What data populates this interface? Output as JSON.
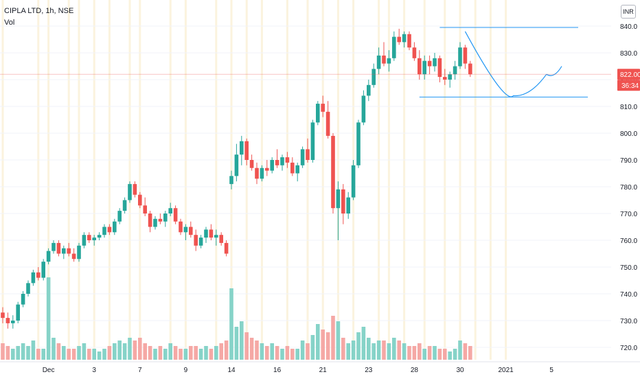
{
  "legend": {
    "title": "CIPLA LTD, 1h, NSE",
    "volume_label": "Vol"
  },
  "currency": "INR",
  "price_labels": {
    "last_price": "822.00",
    "countdown": "36:34"
  },
  "colors": {
    "up": "#26a69a",
    "down": "#ef5350",
    "volume_up": "#86d3c8",
    "volume_down": "#f5a8a5",
    "session_stripe": "#fbf3de",
    "drawing": "#2196f3",
    "last_price_line": "#ef5350",
    "axis_text": "#131722"
  },
  "chart_data": {
    "type": "candlestick",
    "title": "CIPLA LTD, 1h, NSE",
    "ylim": [
      714,
      844
    ],
    "y_ticks": [
      720,
      730,
      740,
      750,
      760,
      770,
      780,
      790,
      800,
      810,
      820,
      830,
      840
    ],
    "x_ticks": [
      {
        "label": "Dec",
        "index": 9
      },
      {
        "label": "3",
        "index": 18
      },
      {
        "label": "7",
        "index": 27
      },
      {
        "label": "9",
        "index": 36
      },
      {
        "label": "14",
        "index": 45
      },
      {
        "label": "16",
        "index": 54
      },
      {
        "label": "21",
        "index": 63
      },
      {
        "label": "23",
        "index": 72
      },
      {
        "label": "28",
        "index": 81
      },
      {
        "label": "30",
        "index": 90
      },
      {
        "label": "2021",
        "index": 99
      },
      {
        "label": "5",
        "index": 108
      }
    ],
    "session_days": [
      0,
      7,
      9,
      13,
      15,
      18,
      21,
      25,
      27,
      33,
      36,
      42,
      45,
      48,
      51,
      56,
      60,
      63,
      66,
      69,
      74,
      76,
      79,
      83,
      87,
      90,
      93,
      96,
      99
    ],
    "last_price": 822.0,
    "volume_max": 35,
    "series": [
      {
        "name": "CIPLA LTD",
        "candles": [
          [
            733,
            735,
            729,
            731,
            6
          ],
          [
            731,
            733,
            727,
            729,
            5
          ],
          [
            729,
            732,
            727,
            730,
            4
          ],
          [
            730,
            737,
            729,
            736,
            5
          ],
          [
            736,
            741,
            735,
            740,
            6
          ],
          [
            740,
            745,
            739,
            744,
            5
          ],
          [
            744,
            749,
            743,
            748,
            7
          ],
          [
            748,
            750,
            745,
            746,
            4
          ],
          [
            746,
            753,
            745,
            752,
            4
          ],
          [
            752,
            757,
            751,
            756,
            30
          ],
          [
            756,
            760,
            755,
            759,
            8
          ],
          [
            759,
            760,
            754,
            755,
            6
          ],
          [
            755,
            758,
            753,
            757,
            5
          ],
          [
            757,
            759,
            754,
            755,
            4
          ],
          [
            755,
            757,
            752,
            753,
            4
          ],
          [
            753,
            759,
            752,
            758,
            5
          ],
          [
            758,
            763,
            757,
            762,
            6
          ],
          [
            762,
            763,
            759,
            760,
            4
          ],
          [
            760,
            762,
            758,
            761,
            4
          ],
          [
            761,
            763,
            760,
            762,
            3
          ],
          [
            762,
            766,
            761,
            765,
            4
          ],
          [
            765,
            766,
            762,
            763,
            5
          ],
          [
            763,
            768,
            762,
            767,
            6
          ],
          [
            767,
            772,
            766,
            771,
            7
          ],
          [
            771,
            776,
            770,
            775,
            6
          ],
          [
            775,
            782,
            774,
            781,
            8
          ],
          [
            781,
            782,
            776,
            777,
            7
          ],
          [
            777,
            778,
            772,
            773,
            8
          ],
          [
            773,
            776,
            769,
            770,
            6
          ],
          [
            770,
            771,
            763,
            765,
            5
          ],
          [
            765,
            769,
            764,
            768,
            4
          ],
          [
            768,
            770,
            766,
            767,
            5
          ],
          [
            767,
            771,
            765,
            770,
            4
          ],
          [
            770,
            774,
            769,
            772,
            6
          ],
          [
            772,
            773,
            766,
            767,
            5
          ],
          [
            767,
            768,
            762,
            763,
            4
          ],
          [
            763,
            766,
            760,
            765,
            4
          ],
          [
            765,
            767,
            761,
            762,
            5
          ],
          [
            762,
            764,
            756,
            758,
            5
          ],
          [
            758,
            762,
            757,
            761,
            4
          ],
          [
            761,
            765,
            759,
            764,
            5
          ],
          [
            764,
            766,
            760,
            761,
            4
          ],
          [
            761,
            764,
            758,
            762,
            5
          ],
          [
            762,
            763,
            758,
            759,
            6
          ],
          [
            759,
            760,
            754,
            755,
            7
          ],
          [
            781,
            786,
            779,
            784,
            26
          ],
          [
            784,
            796,
            782,
            792,
            12
          ],
          [
            792,
            799,
            788,
            797,
            14
          ],
          [
            797,
            798,
            788,
            790,
            10
          ],
          [
            790,
            792,
            786,
            787,
            8
          ],
          [
            787,
            789,
            781,
            783,
            7
          ],
          [
            783,
            788,
            782,
            787,
            6
          ],
          [
            787,
            790,
            784,
            786,
            5
          ],
          [
            786,
            791,
            785,
            790,
            6
          ],
          [
            790,
            794,
            787,
            788,
            5
          ],
          [
            788,
            792,
            786,
            791,
            4
          ],
          [
            791,
            793,
            787,
            789,
            5
          ],
          [
            789,
            791,
            784,
            785,
            4
          ],
          [
            785,
            789,
            782,
            788,
            4
          ],
          [
            788,
            795,
            787,
            794,
            7
          ],
          [
            794,
            798,
            789,
            790,
            6
          ],
          [
            790,
            805,
            789,
            804,
            9
          ],
          [
            804,
            812,
            803,
            811,
            13
          ],
          [
            811,
            814,
            806,
            808,
            11
          ],
          [
            808,
            812,
            798,
            799,
            10
          ],
          [
            799,
            800,
            770,
            772,
            16
          ],
          [
            772,
            782,
            760,
            779,
            14
          ],
          [
            779,
            781,
            766,
            770,
            8
          ],
          [
            770,
            778,
            768,
            776,
            6
          ],
          [
            776,
            790,
            775,
            788,
            7
          ],
          [
            788,
            805,
            787,
            804,
            10
          ],
          [
            804,
            816,
            803,
            814,
            12
          ],
          [
            814,
            820,
            812,
            818,
            8
          ],
          [
            818,
            826,
            817,
            824,
            6
          ],
          [
            824,
            832,
            822,
            829,
            7
          ],
          [
            829,
            834,
            825,
            826,
            7
          ],
          [
            826,
            831,
            823,
            828,
            6
          ],
          [
            828,
            838,
            827,
            836,
            8
          ],
          [
            836,
            839,
            833,
            834,
            7
          ],
          [
            834,
            838,
            832,
            837,
            6
          ],
          [
            837,
            838,
            831,
            832,
            5
          ],
          [
            832,
            834,
            827,
            828,
            5
          ],
          [
            828,
            831,
            820,
            822,
            6
          ],
          [
            822,
            829,
            820,
            827,
            4
          ],
          [
            827,
            829,
            822,
            825,
            5
          ],
          [
            825,
            830,
            823,
            828,
            5
          ],
          [
            828,
            829,
            819,
            821,
            4
          ],
          [
            821,
            824,
            818,
            820,
            4
          ],
          [
            820,
            823,
            817,
            822,
            3
          ],
          [
            822,
            827,
            820,
            825,
            4
          ],
          [
            825,
            834,
            824,
            832,
            7
          ],
          [
            832,
            833,
            824,
            826,
            6
          ],
          [
            826,
            827,
            821,
            822,
            5
          ]
        ]
      }
    ],
    "drawings": {
      "resistance_line": 839.5,
      "support_line": 813.5,
      "cup_left_price": 838,
      "cup_bottom_price": 814,
      "cup_right_price": 822,
      "projection_peak_price": 825
    }
  }
}
